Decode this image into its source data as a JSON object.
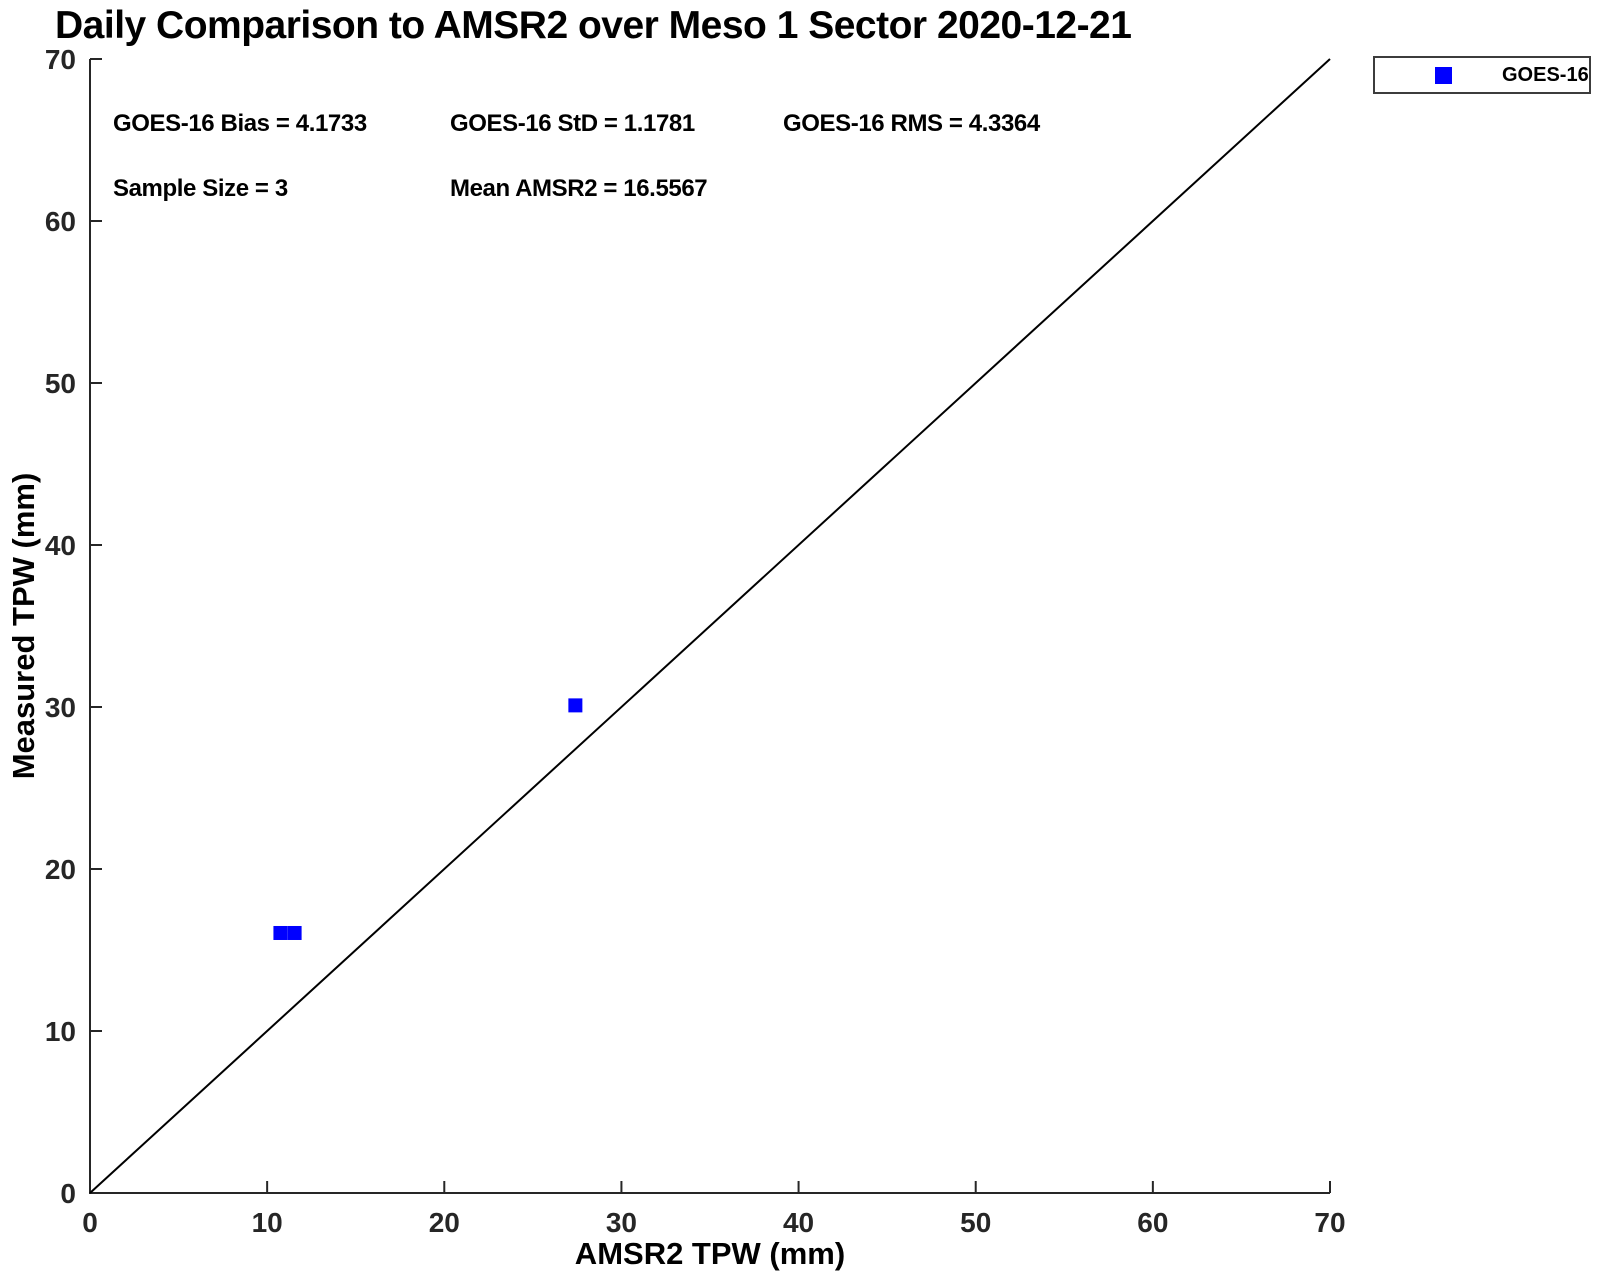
{
  "title": "Daily Comparison to AMSR2 over Meso 1 Sector 2020-12-21",
  "stats": {
    "bias": "GOES-16 Bias = 4.1733",
    "std": "GOES-16 StD = 1.1781",
    "rms": "GOES-16 RMS = 4.3364",
    "sample_size": "Sample Size = 3",
    "mean_amsr2": "Mean AMSR2 = 16.5567"
  },
  "axes": {
    "xlabel": "AMSR2 TPW (mm)",
    "ylabel": "Measured TPW (mm)"
  },
  "legend": {
    "label": "GOES-16",
    "marker_shape": "square",
    "marker_color": "#0000ff"
  },
  "colors": {
    "axis": "#262626",
    "tick_label": "#262626",
    "reference_line": "#000000",
    "marker": "#0000ff",
    "background": "#ffffff"
  },
  "chart_data": {
    "type": "scatter",
    "title": "Daily Comparison to AMSR2 over Meso 1 Sector 2020-12-21",
    "xlabel": "AMSR2 TPW (mm)",
    "ylabel": "Measured TPW (mm)",
    "xlim": [
      0,
      70
    ],
    "ylim": [
      0,
      70
    ],
    "xticks": [
      0,
      10,
      20,
      30,
      40,
      50,
      60,
      70
    ],
    "yticks": [
      0,
      10,
      20,
      30,
      40,
      50,
      60,
      70
    ],
    "grid": false,
    "legend_position": "top-right-outside",
    "series": [
      {
        "name": "GOES-16",
        "marker": "square",
        "color": "#0000ff",
        "points": [
          {
            "x": 10.75,
            "y": 16.05
          },
          {
            "x": 11.55,
            "y": 16.05
          },
          {
            "x": 27.4,
            "y": 30.1
          }
        ]
      }
    ],
    "reference_line": {
      "from": [
        0,
        0
      ],
      "to": [
        70,
        70
      ],
      "color": "#000000",
      "width": 2
    },
    "stats": {
      "goes16_bias": 4.1733,
      "goes16_std": 1.1781,
      "goes16_rms": 4.3364,
      "sample_size": 3,
      "mean_amsr2": 16.5567
    }
  }
}
